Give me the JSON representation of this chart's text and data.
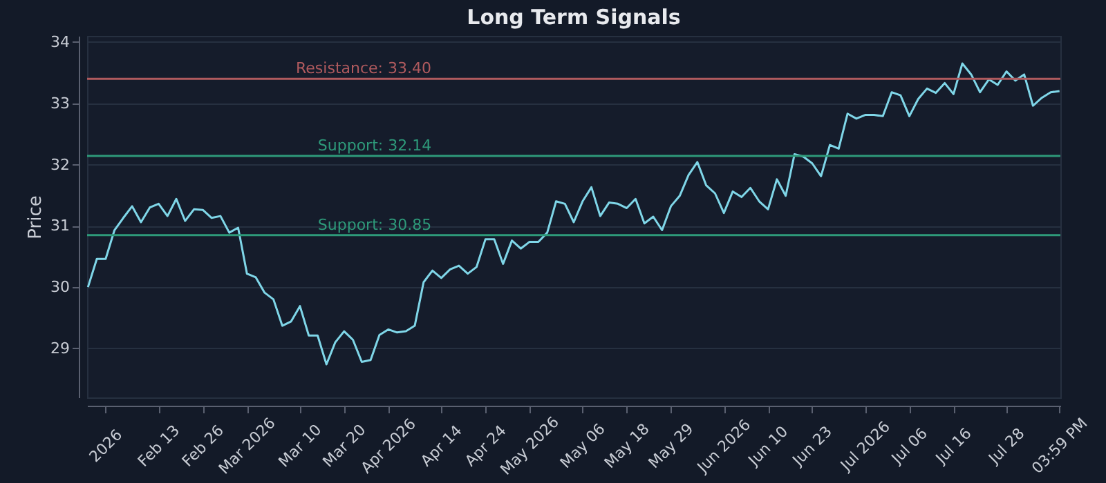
{
  "chart_data": {
    "type": "line",
    "title": "Long Term Signals",
    "ylabel": "Price",
    "ylim": [
      28.2,
      34.1
    ],
    "yticks": [
      29,
      30,
      31,
      32,
      33,
      34
    ],
    "grid": "y",
    "marker": "none",
    "line_style": "solid",
    "categories": [
      null,
      null,
      "2026",
      null,
      null,
      null,
      null,
      null,
      "Feb 13",
      null,
      null,
      null,
      null,
      "Feb 26",
      null,
      null,
      null,
      null,
      "Mar 2026",
      null,
      null,
      null,
      null,
      null,
      "Mar 10",
      null,
      null,
      null,
      null,
      "Mar 20",
      null,
      null,
      null,
      null,
      "Apr 2026",
      null,
      null,
      null,
      null,
      null,
      "Apr 14",
      null,
      null,
      null,
      null,
      "Apr 24",
      null,
      null,
      null,
      null,
      "May 2026",
      null,
      null,
      null,
      null,
      null,
      "May 06",
      null,
      null,
      null,
      null,
      "May 18",
      null,
      null,
      null,
      null,
      "May 29",
      null,
      null,
      null,
      null,
      null,
      "Jun 2026",
      null,
      null,
      null,
      null,
      "Jun 10",
      null,
      null,
      null,
      null,
      "Jun 23",
      null,
      null,
      null,
      null,
      null,
      "Jul 2026",
      null,
      null,
      null,
      null,
      "Jul 06",
      null,
      null,
      null,
      null,
      "Jul 16",
      null,
      null,
      null,
      null,
      null,
      "Jul 28",
      null,
      null,
      null,
      null,
      null,
      "03:59 PM"
    ],
    "series": [
      {
        "color": "#7fd6e8",
        "values": [
          30.0,
          30.46,
          30.46,
          30.93,
          31.13,
          31.32,
          31.06,
          31.3,
          31.36,
          31.16,
          31.44,
          31.08,
          31.27,
          31.26,
          31.13,
          31.16,
          30.89,
          30.97,
          30.22,
          30.16,
          29.91,
          29.8,
          29.37,
          29.44,
          29.69,
          29.21,
          29.21,
          28.74,
          29.1,
          29.28,
          29.14,
          28.78,
          28.81,
          29.22,
          29.31,
          29.26,
          29.28,
          29.37,
          30.08,
          30.27,
          30.15,
          30.29,
          30.35,
          30.22,
          30.33,
          30.78,
          30.78,
          30.38,
          30.76,
          30.63,
          30.74,
          30.74,
          30.89,
          31.4,
          31.36,
          31.06,
          31.4,
          31.63,
          31.16,
          31.38,
          31.36,
          31.29,
          31.44,
          31.04,
          31.15,
          30.93,
          31.32,
          31.49,
          31.83,
          32.04,
          31.66,
          31.53,
          31.21,
          31.56,
          31.47,
          31.62,
          31.4,
          31.27,
          31.76,
          31.49,
          32.17,
          32.13,
          32.02,
          31.81,
          32.32,
          32.26,
          32.83,
          32.75,
          32.81,
          32.81,
          32.79,
          33.18,
          33.13,
          32.79,
          33.07,
          33.24,
          33.17,
          33.33,
          33.15,
          33.65,
          33.47,
          33.18,
          33.39,
          33.3,
          33.52,
          33.37,
          33.47,
          32.96,
          33.09,
          33.18,
          33.2
        ]
      }
    ],
    "ref_lines": [
      {
        "axis": "y",
        "value": 33.4,
        "label": "Resistance: 33.40",
        "color": "#b05a5e",
        "line_style": "solid"
      },
      {
        "axis": "y",
        "value": 32.14,
        "label": "Support: 32.14",
        "color": "#2e9a7a",
        "line_style": "solid"
      },
      {
        "axis": "y",
        "value": 30.85,
        "label": "Support: 30.85",
        "color": "#2e9a7a",
        "line_style": "solid"
      }
    ]
  }
}
